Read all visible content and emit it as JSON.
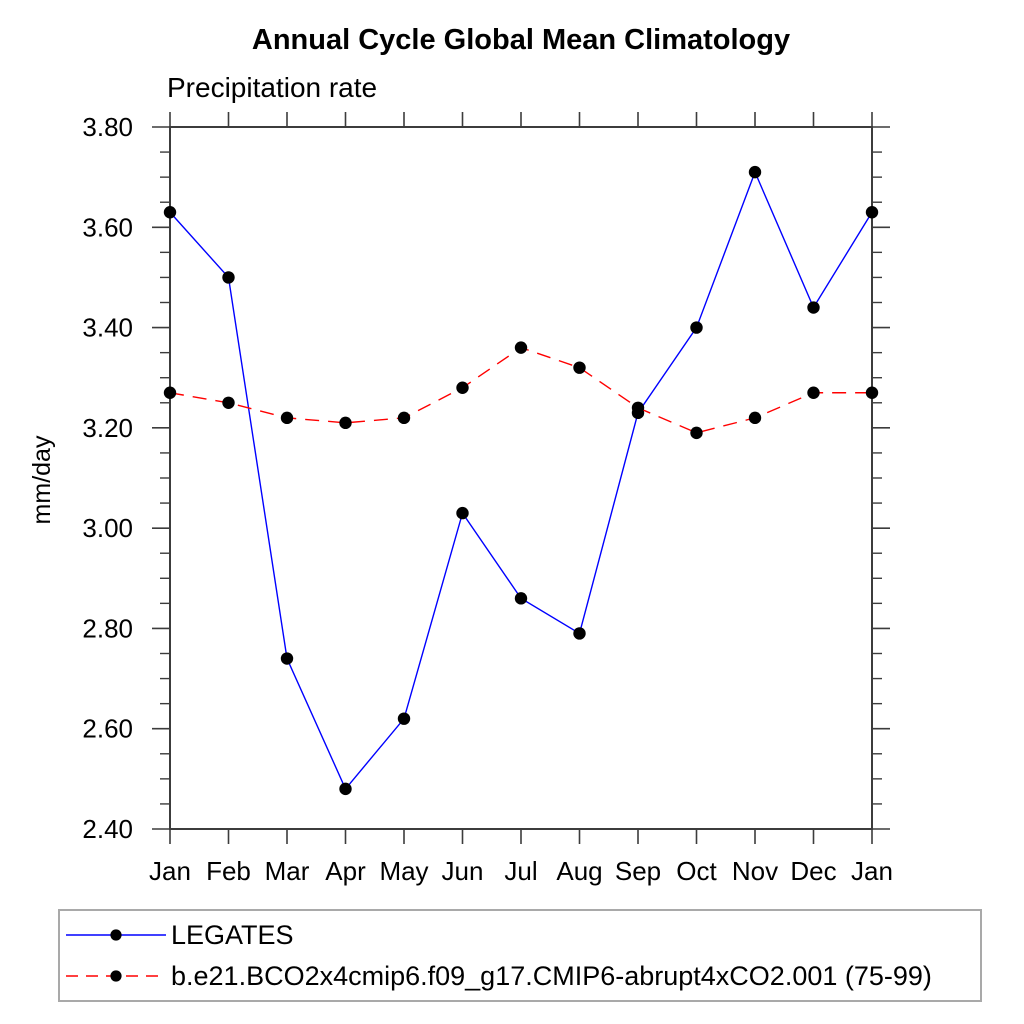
{
  "chart_data": {
    "type": "line",
    "title": "Annual Cycle Global Mean Climatology",
    "subtitle": "Precipitation rate",
    "ylabel": "mm/day",
    "xlabel": "",
    "x_tick_labels": [
      "Jan",
      "Feb",
      "Mar",
      "Apr",
      "May",
      "Jun",
      "Jul",
      "Aug",
      "Sep",
      "Oct",
      "Nov",
      "Dec",
      "Jan"
    ],
    "ylim": [
      2.4,
      3.8
    ],
    "y_tick_labels": [
      "3.80",
      "3.60",
      "3.40",
      "3.20",
      "3.00",
      "2.80",
      "2.60",
      "2.40"
    ],
    "y_major_step": 0.2,
    "y_minor_step": 0.05,
    "grid": false,
    "legend_position": "bottom-left-box",
    "frame_color": "#3c3c3c",
    "series": [
      {
        "name": "LEGATES",
        "color": "#0000ff",
        "line_style": "solid",
        "marker": "filled-circle",
        "marker_color": "#000000",
        "values": [
          3.63,
          3.5,
          2.74,
          2.48,
          2.62,
          3.03,
          2.86,
          2.79,
          3.23,
          3.4,
          3.71,
          3.44,
          3.63
        ]
      },
      {
        "name": "b.e21.BCO2x4cmip6.f09_g17.CMIP6-abrupt4xCO2.001 (75-99)",
        "color": "#ff0000",
        "line_style": "dashed",
        "marker": "filled-circle",
        "marker_color": "#000000",
        "values": [
          3.27,
          3.25,
          3.22,
          3.21,
          3.22,
          3.28,
          3.36,
          3.32,
          3.24,
          3.19,
          3.22,
          3.27,
          3.27
        ]
      }
    ]
  }
}
